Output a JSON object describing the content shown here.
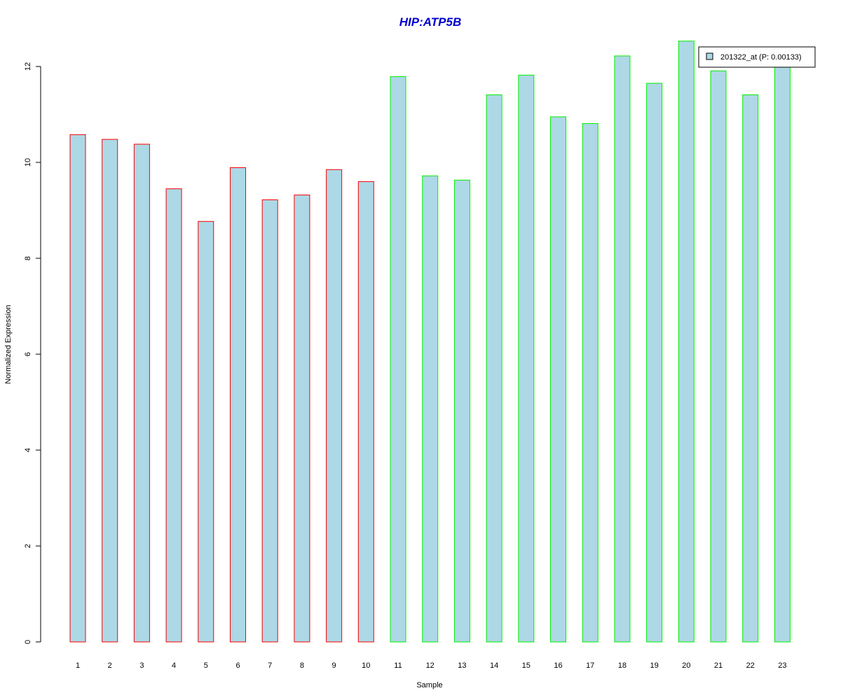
{
  "chart_data": {
    "type": "bar",
    "title": "HIP:ATP5B",
    "xlabel": "Sample",
    "ylabel": "Normalized Expression",
    "categories": [
      "1",
      "2",
      "3",
      "4",
      "5",
      "6",
      "7",
      "8",
      "9",
      "10",
      "11",
      "12",
      "13",
      "14",
      "15",
      "16",
      "17",
      "18",
      "19",
      "20",
      "21",
      "22",
      "23"
    ],
    "series": [
      {
        "name": "201322_at (P: 0.00133)",
        "values": [
          10.58,
          10.48,
          10.38,
          9.45,
          8.77,
          9.89,
          9.22,
          9.32,
          9.85,
          9.6,
          11.79,
          9.72,
          9.63,
          11.41,
          11.82,
          10.95,
          10.81,
          12.22,
          11.65,
          12.53,
          11.91,
          11.41,
          12.09
        ]
      }
    ],
    "group_colors": [
      "#ff0000",
      "#ff0000",
      "#ff0000",
      "#ff0000",
      "#ff0000",
      "#ff0000",
      "#ff0000",
      "#ff0000",
      "#ff0000",
      "#ff0000",
      "#00ee00",
      "#00ee00",
      "#00ee00",
      "#00ee00",
      "#00ee00",
      "#00ee00",
      "#00ee00",
      "#00ee00",
      "#00ee00",
      "#00ee00",
      "#00ee00",
      "#00ee00",
      "#00ee00"
    ],
    "fill_color": "#add8e6",
    "title_color": "#0000cd",
    "ylim": [
      0,
      12.5
    ],
    "yticks": [
      "0",
      "2",
      "4",
      "6",
      "8",
      "10",
      "12"
    ],
    "grid": false,
    "legend_position": "top-right"
  }
}
